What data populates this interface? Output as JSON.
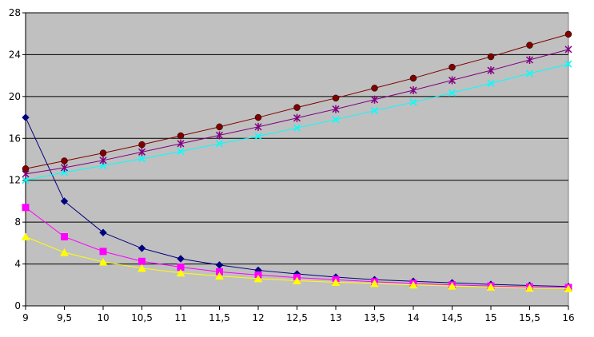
{
  "chart_data": {
    "type": "line",
    "title": "",
    "xlabel": "",
    "ylabel": "",
    "xlim": [
      9,
      16
    ],
    "ylim": [
      0,
      28
    ],
    "grid": "horizontal",
    "background": "#c0c0c0",
    "x_ticks": [
      "9",
      "9,5",
      "10",
      "10,5",
      "11",
      "11,5",
      "12",
      "12,5",
      "13",
      "13,5",
      "14",
      "14,5",
      "15",
      "15,5",
      "16"
    ],
    "y_ticks": [
      "0",
      "4",
      "8",
      "12",
      "16",
      "20",
      "24",
      "28"
    ],
    "x": [
      9,
      9.5,
      10,
      10.5,
      11,
      11.5,
      12,
      12.5,
      13,
      13.5,
      14,
      14.5,
      15,
      15.5,
      16
    ],
    "series": [
      {
        "color": "#000080",
        "marker": "diamond",
        "values": [
          18.0,
          10.0,
          7.0,
          5.5,
          4.5,
          3.9,
          3.4,
          3.05,
          2.75,
          2.5,
          2.35,
          2.2,
          2.05,
          1.95,
          1.85
        ]
      },
      {
        "color": "#ff00ff",
        "marker": "square",
        "values": [
          9.4,
          6.6,
          5.2,
          4.25,
          3.7,
          3.25,
          2.95,
          2.7,
          2.5,
          2.3,
          2.15,
          2.0,
          1.9,
          1.8,
          1.75
        ]
      },
      {
        "color": "#ffff00",
        "marker": "triangle",
        "values": [
          6.6,
          5.1,
          4.2,
          3.6,
          3.15,
          2.85,
          2.6,
          2.4,
          2.25,
          2.15,
          2.0,
          1.9,
          1.8,
          1.7,
          1.65
        ]
      },
      {
        "color": "#00ffff",
        "marker": "x",
        "values": [
          12.0,
          12.75,
          13.4,
          14.05,
          14.75,
          15.5,
          16.2,
          17.0,
          17.8,
          18.65,
          19.45,
          20.35,
          21.25,
          22.2,
          23.1
        ]
      },
      {
        "color": "#800080",
        "marker": "star",
        "values": [
          12.6,
          13.2,
          13.9,
          14.7,
          15.5,
          16.3,
          17.1,
          17.95,
          18.8,
          19.7,
          20.6,
          21.55,
          22.5,
          23.5,
          24.5
        ]
      },
      {
        "color": "#800000",
        "marker": "circle",
        "values": [
          13.1,
          13.85,
          14.6,
          15.4,
          16.25,
          17.1,
          18.0,
          18.95,
          19.85,
          20.8,
          21.75,
          22.8,
          23.8,
          24.9,
          25.95
        ]
      }
    ]
  }
}
